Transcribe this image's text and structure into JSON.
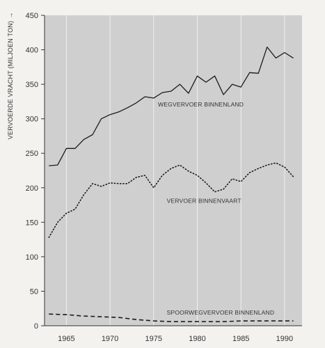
{
  "chart_data": {
    "type": "line",
    "title": "",
    "xlabel": "",
    "ylabel": "VERVOERDE VRACHT (MILJOEN TON)",
    "ylabel_arrow": "→",
    "xlim": [
      1962.5,
      1992
    ],
    "ylim": [
      0,
      450
    ],
    "xticks": [
      1965,
      1970,
      1975,
      1980,
      1985,
      1990
    ],
    "yticks": [
      0,
      50,
      100,
      150,
      200,
      250,
      300,
      350,
      400,
      450
    ],
    "grid": "vertical lines at x ticks",
    "legend": "none (inline labels)",
    "background_color": "#cfcfcf",
    "series": [
      {
        "name": "WEGVERVOER BINNENLAND",
        "style": "solid",
        "color": "#1a1a1a",
        "x": [
          1963,
          1964,
          1965,
          1966,
          1967,
          1968,
          1969,
          1970,
          1971,
          1972,
          1973,
          1974,
          1975,
          1976,
          1977,
          1978,
          1979,
          1980,
          1981,
          1982,
          1983,
          1984,
          1985,
          1986,
          1987,
          1988,
          1989,
          1990,
          1991
        ],
        "values": [
          232,
          233,
          257,
          257,
          270,
          277,
          300,
          306,
          310,
          316,
          323,
          332,
          330,
          338,
          340,
          350,
          337,
          362,
          353,
          362,
          335,
          350,
          346,
          367,
          366,
          404,
          388,
          396,
          388
        ]
      },
      {
        "name": "VERVOER BINNENVAART",
        "style": "dotted",
        "color": "#1a1a1a",
        "x": [
          1963,
          1964,
          1965,
          1966,
          1967,
          1968,
          1969,
          1970,
          1971,
          1972,
          1973,
          1974,
          1975,
          1976,
          1977,
          1978,
          1979,
          1980,
          1981,
          1982,
          1983,
          1984,
          1985,
          1986,
          1987,
          1988,
          1989,
          1990,
          1991
        ],
        "values": [
          128,
          150,
          163,
          169,
          190,
          206,
          202,
          207,
          206,
          206,
          215,
          218,
          200,
          218,
          228,
          233,
          224,
          218,
          207,
          194,
          198,
          213,
          209,
          222,
          228,
          233,
          236,
          230,
          216
        ]
      },
      {
        "name": "SPOORWEGVERVOER BINNENLAND",
        "style": "dashed",
        "color": "#1a1a1a",
        "x": [
          1963,
          1965,
          1967,
          1969,
          1971,
          1973,
          1975,
          1977,
          1979,
          1981,
          1983,
          1985,
          1987,
          1989,
          1991
        ],
        "values": [
          17,
          16,
          14,
          13,
          12,
          9,
          7,
          6,
          6,
          6,
          6,
          7,
          7,
          7,
          7
        ]
      }
    ],
    "annotations": [
      {
        "text": "WEGVERVOER BINNENLAND",
        "anchor_x": 1975.5,
        "anchor_y": 318
      },
      {
        "text": "VERVOER BINNENVAART",
        "anchor_x": 1976.5,
        "anchor_y": 178
      },
      {
        "text": "SPOORWEGVERVOER BINNENLAND",
        "anchor_x": 1976.5,
        "anchor_y": 16
      }
    ]
  }
}
